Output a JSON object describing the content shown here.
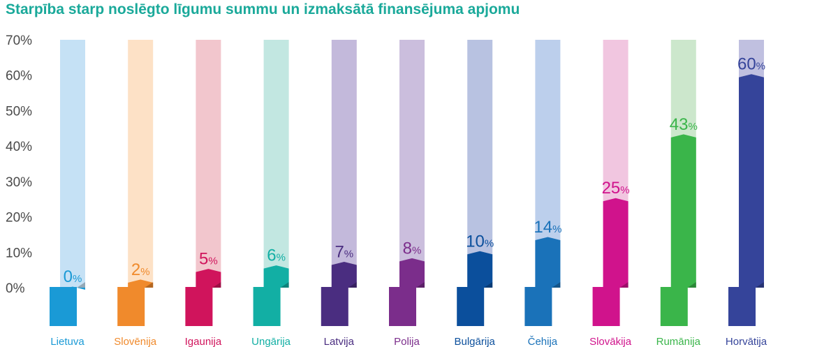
{
  "chart_data": {
    "type": "bar",
    "title": "Starpība starp noslēgto līgumu summu un izmaksātā finansējuma apjomu",
    "categories": [
      "Lietuva",
      "Slovēnija",
      "Igaunija",
      "Ungārija",
      "Latvija",
      "Polija",
      "Bulgārija",
      "Čehija",
      "Slovākija",
      "Rumānija",
      "Horvātija"
    ],
    "values": [
      0,
      2,
      5,
      6,
      7,
      8,
      10,
      14,
      25,
      43,
      60
    ],
    "value_labels": [
      "0%",
      "2%",
      "5%",
      "6%",
      "7%",
      "8%",
      "10%",
      "14%",
      "25%",
      "43%",
      "60%"
    ],
    "ylim": [
      0,
      70
    ],
    "yticks": [
      "0%",
      "10%",
      "20%",
      "30%",
      "40%",
      "50%",
      "60%",
      "70%"
    ],
    "grid": false,
    "legend": "none",
    "colors": [
      "#1a9ad6",
      "#f08a2c",
      "#d0145c",
      "#12afa4",
      "#4a2d80",
      "#7b2d8b",
      "#0b4f9c",
      "#1a72b9",
      "#d0138c",
      "#3ab54a",
      "#35449a"
    ],
    "track_colors": [
      "#c5e1f5",
      "#fde1c6",
      "#f2c6cd",
      "#c2e7e1",
      "#c3b9db",
      "#cbbedd",
      "#b8c2e1",
      "#bccfec",
      "#f1c6e0",
      "#cce7cc",
      "#c0c0e0"
    ]
  }
}
